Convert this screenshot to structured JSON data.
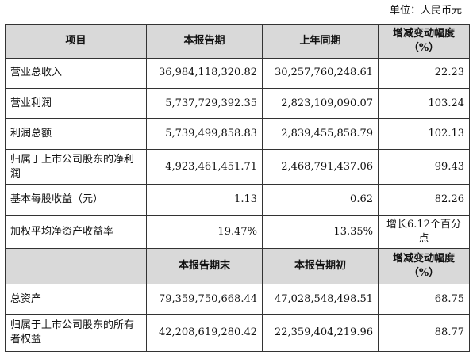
{
  "unit_note": "单位：人民币元",
  "header1": [
    "项目",
    "本报告期",
    "上年同期",
    "增减变动幅度（%）"
  ],
  "rows1": [
    {
      "item": "营业总收入",
      "current": "36,984,118,320.82",
      "prior": "30,257,760,248.61",
      "change": "22.23"
    },
    {
      "item": "营业利润",
      "current": "5,737,729,392.35",
      "prior": "2,823,109,090.07",
      "change": "103.24"
    },
    {
      "item": "利润总额",
      "current": "5,739,499,858.83",
      "prior": "2,839,455,858.79",
      "change": "102.13"
    },
    {
      "item": "归属于上市公司股东的净利润",
      "current": "4,923,461,451.71",
      "prior": "2,468,791,437.06",
      "change": "99.43"
    },
    {
      "item": "基本每股收益（元）",
      "current": "1.13",
      "prior": "0.62",
      "change": "82.26"
    },
    {
      "item": "加权平均净资产收益率",
      "current": "19.47%",
      "prior": "13.35%",
      "change": "增长6.12个百分点"
    }
  ],
  "header2": [
    "",
    "本报告期末",
    "本报告期初",
    "增减变动幅度（%）"
  ],
  "rows2": [
    {
      "item": "总资产",
      "current": "79,359,750,668.44",
      "prior": "47,028,548,498.51",
      "change": "68.75"
    },
    {
      "item": "归属于上市公司股东的所有者权益",
      "current": "42,208,619,280.42",
      "prior": "22,359,404,219.96",
      "change": "88.77"
    }
  ]
}
